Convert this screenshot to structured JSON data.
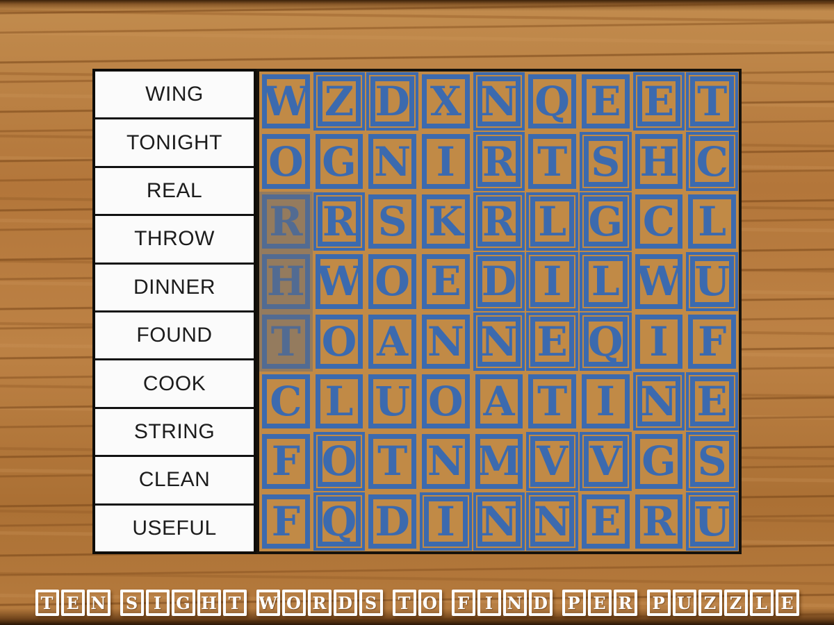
{
  "word_list": {
    "words": [
      "WING",
      "TONIGHT",
      "REAL",
      "THROW",
      "DINNER",
      "FOUND",
      "COOK",
      "STRING",
      "CLEAN",
      "USEFUL"
    ]
  },
  "grid": {
    "rows": 8,
    "cols": 9,
    "letters": [
      [
        "W",
        "Z",
        "D",
        "X",
        "N",
        "Q",
        "E",
        "E",
        "T"
      ],
      [
        "O",
        "G",
        "N",
        "I",
        "R",
        "T",
        "S",
        "H",
        "C"
      ],
      [
        "R",
        "R",
        "S",
        "K",
        "R",
        "L",
        "G",
        "C",
        "L"
      ],
      [
        "H",
        "W",
        "O",
        "E",
        "D",
        "I",
        "L",
        "W",
        "U"
      ],
      [
        "T",
        "O",
        "A",
        "N",
        "N",
        "E",
        "Q",
        "I",
        "F"
      ],
      [
        "C",
        "L",
        "U",
        "O",
        "A",
        "T",
        "I",
        "N",
        "E"
      ],
      [
        "F",
        "O",
        "T",
        "N",
        "M",
        "V",
        "V",
        "G",
        "S"
      ],
      [
        "F",
        "Q",
        "D",
        "I",
        "N",
        "N",
        "E",
        "R",
        "U"
      ]
    ],
    "variants": [
      [
        "a",
        "b",
        "b",
        "a",
        "b",
        "a",
        "a",
        "b",
        "b"
      ],
      [
        "a",
        "a",
        "a",
        "a",
        "b",
        "a",
        "b",
        "a",
        "b"
      ],
      [
        "a",
        "b",
        "a",
        "a",
        "b",
        "b",
        "b",
        "a",
        "a"
      ],
      [
        "a",
        "a",
        "a",
        "a",
        "b",
        "b",
        "b",
        "a",
        "b"
      ],
      [
        "a",
        "a",
        "a",
        "a",
        "b",
        "b",
        "b",
        "a",
        "a"
      ],
      [
        "a",
        "a",
        "a",
        "a",
        "a",
        "a",
        "a",
        "b",
        "b"
      ],
      [
        "a",
        "b",
        "a",
        "a",
        "a",
        "b",
        "b",
        "a",
        "b"
      ],
      [
        "a",
        "b",
        "a",
        "b",
        "b",
        "b",
        "a",
        "a",
        "b"
      ]
    ],
    "highlighted_cells": [
      {
        "row": 3,
        "col": 1
      },
      {
        "row": 4,
        "col": 1
      },
      {
        "row": 5,
        "col": 1
      }
    ]
  },
  "caption": {
    "text": "TEN SIGHT WORDS TO FIND PER PUZZLE",
    "words": [
      [
        "T",
        "E",
        "N"
      ],
      [
        "S",
        "I",
        "G",
        "H",
        "T"
      ],
      [
        "W",
        "O",
        "R",
        "D",
        "S"
      ],
      [
        "T",
        "O"
      ],
      [
        "F",
        "I",
        "N",
        "D"
      ],
      [
        "P",
        "E",
        "R"
      ],
      [
        "P",
        "U",
        "Z",
        "Z",
        "L",
        "E"
      ]
    ]
  },
  "colors": {
    "block_tan": "#c18a46",
    "block_blue": "#3c6aae",
    "grid_border": "#17120b",
    "word_cell_bg": "#fbfbfb",
    "word_text": "#1c1c1c",
    "caption_white": "#ffffff",
    "highlight_overlay": "rgba(104,108,118,0.5)",
    "wood_base": "#b5793c"
  }
}
